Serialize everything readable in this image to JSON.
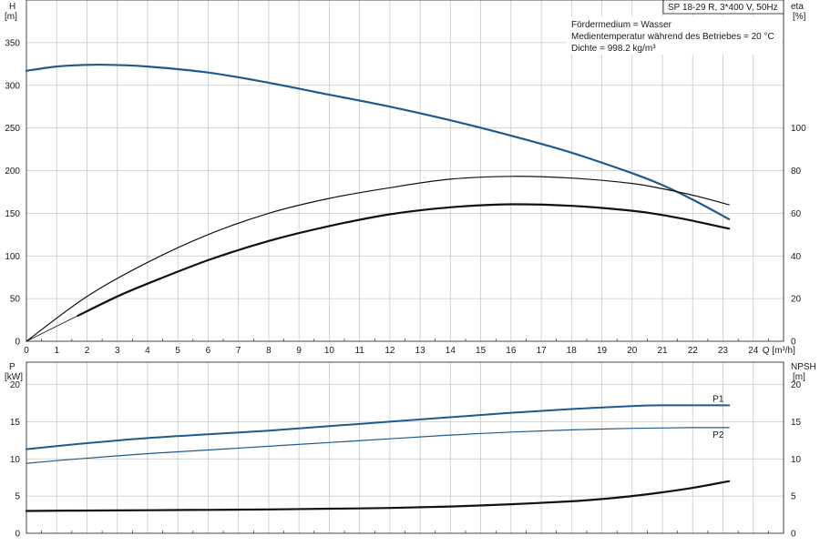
{
  "header_box": "SP 18-29 R, 3*400 V, 50Hz",
  "info_lines": [
    "Fördermedium = Wasser",
    "Medientemperatur während des Betriebes = 20 °C",
    "Dichte = 998.2 kg/m³"
  ],
  "colors": {
    "blue": "#1f5a8e",
    "black": "#111111",
    "grid": "#c8c8c8"
  },
  "chart_data": [
    {
      "type": "line",
      "xlabel": "Q [m³/h]",
      "x_ticks": [
        "0",
        "1",
        "2",
        "3",
        "4",
        "5",
        "6",
        "7",
        "8",
        "9",
        "10",
        "11",
        "12",
        "13",
        "14",
        "15",
        "16",
        "17",
        "18",
        "19",
        "20",
        "21",
        "22",
        "23",
        "24"
      ],
      "x_range": [
        0,
        25
      ],
      "y_left": {
        "label": "H",
        "unit": "[m]",
        "range": [
          0,
          400
        ],
        "ticks": [
          "0",
          "50",
          "100",
          "150",
          "200",
          "250",
          "300",
          "350"
        ]
      },
      "y_right": {
        "label": "eta",
        "unit": "[%]",
        "range": [
          0,
          160
        ],
        "ticks": [
          "0",
          "20",
          "40",
          "60",
          "80",
          "100"
        ]
      },
      "grid": true,
      "series": [
        {
          "axis": "left",
          "color": "#1f5a8e",
          "width": 2.2,
          "x": [
            0,
            1,
            2,
            2.8,
            4,
            6,
            8,
            10,
            12,
            14,
            16,
            18,
            20,
            21,
            22,
            23.2
          ],
          "y": [
            317,
            322,
            324,
            324,
            322,
            315,
            303,
            289,
            275,
            259,
            241,
            221,
            197,
            183,
            166,
            143
          ]
        },
        {
          "axis": "right",
          "color": "#111111",
          "width": 1.2,
          "x": [
            0,
            2,
            4,
            6,
            8,
            10,
            12,
            14,
            16,
            18,
            20,
            21,
            22,
            23.2
          ],
          "y": [
            0,
            21,
            37,
            50,
            60,
            67,
            72,
            76,
            77.3,
            76.5,
            74,
            71.5,
            68.5,
            64
          ]
        },
        {
          "axis": "right",
          "color": "#111111",
          "width": 2.2,
          "x": [
            1.7,
            3,
            4,
            6,
            8,
            10,
            12,
            14,
            16,
            18,
            20,
            21,
            22,
            23.2
          ],
          "y": [
            12,
            21,
            27,
            38,
            47,
            54,
            59.5,
            62.8,
            64.2,
            63.5,
            61.2,
            59.2,
            56.5,
            52.8
          ]
        },
        {
          "axis": "right",
          "color": "#111111",
          "width": 0.8,
          "x": [
            0,
            1.7
          ],
          "y": [
            0,
            12
          ]
        }
      ]
    },
    {
      "type": "line",
      "x_range": [
        0,
        25
      ],
      "y_left": {
        "label": "P",
        "unit": "[kW]",
        "range": [
          0,
          23
        ],
        "ticks": [
          "0",
          "5",
          "10",
          "15",
          "20"
        ]
      },
      "y_right": {
        "label": "NPSH",
        "unit": "[m]",
        "range": [
          0,
          23
        ],
        "ticks": [
          "0",
          "5",
          "10",
          "15",
          "20"
        ]
      },
      "grid": true,
      "series": [
        {
          "name": "P1",
          "axis": "left",
          "color": "#1f5a8e",
          "width": 2,
          "x": [
            0,
            1.7,
            4,
            6,
            8,
            10,
            12,
            14,
            16,
            18,
            20,
            21,
            22,
            23.2
          ],
          "y": [
            11.3,
            12.0,
            12.8,
            13.3,
            13.8,
            14.4,
            15.0,
            15.6,
            16.2,
            16.7,
            17.1,
            17.2,
            17.2,
            17.2
          ]
        },
        {
          "name": "P2",
          "axis": "left",
          "color": "#1f5a8e",
          "width": 1.2,
          "x": [
            0,
            1.7,
            4,
            6,
            8,
            10,
            12,
            14,
            16,
            18,
            20,
            21,
            22,
            23.2
          ],
          "y": [
            9.4,
            10.0,
            10.7,
            11.2,
            11.7,
            12.2,
            12.7,
            13.2,
            13.6,
            13.9,
            14.1,
            14.15,
            14.2,
            14.2
          ]
        },
        {
          "axis": "right",
          "color": "#111111",
          "width": 2.2,
          "x": [
            0,
            1.7,
            4,
            6,
            8,
            10,
            12,
            14,
            16,
            18,
            19,
            20,
            21,
            22,
            23.2
          ],
          "y": [
            3.0,
            3.05,
            3.1,
            3.15,
            3.2,
            3.3,
            3.4,
            3.6,
            3.9,
            4.3,
            4.6,
            5.0,
            5.5,
            6.1,
            7.0
          ]
        }
      ]
    }
  ]
}
